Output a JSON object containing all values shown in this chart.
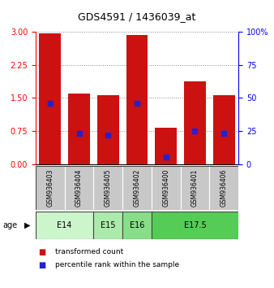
{
  "title": "GDS4591 / 1436039_at",
  "samples": [
    "GSM936403",
    "GSM936404",
    "GSM936405",
    "GSM936402",
    "GSM936400",
    "GSM936401",
    "GSM936406"
  ],
  "red_values": [
    2.97,
    1.6,
    1.57,
    2.93,
    0.82,
    1.87,
    1.57
  ],
  "blue_values": [
    1.38,
    0.7,
    0.66,
    1.38,
    0.17,
    0.75,
    0.7
  ],
  "ylim_left": [
    0,
    3
  ],
  "ylim_right": [
    0,
    100
  ],
  "yticks_left": [
    0,
    0.75,
    1.5,
    2.25,
    3
  ],
  "yticks_right": [
    0,
    25,
    50,
    75,
    100
  ],
  "age_groups": [
    {
      "label": "E14",
      "indices": [
        0,
        1
      ],
      "color": "#ccf5cc"
    },
    {
      "label": "E15",
      "indices": [
        2
      ],
      "color": "#aaeaaa"
    },
    {
      "label": "E16",
      "indices": [
        3
      ],
      "color": "#88dd88"
    },
    {
      "label": "E17.5",
      "indices": [
        4,
        5,
        6
      ],
      "color": "#55cc55"
    }
  ],
  "bar_color": "#cc1111",
  "marker_color": "#2222cc",
  "bar_width": 0.75,
  "grid_color": "#888888",
  "bg_color": "#ffffff",
  "sample_box_color": "#c8c8c8",
  "age_label": "age",
  "legend_red": "transformed count",
  "legend_blue": "percentile rank within the sample",
  "title_fontsize": 9,
  "tick_fontsize": 7,
  "sample_fontsize": 5.5,
  "age_fontsize": 7,
  "legend_fontsize": 6.5
}
